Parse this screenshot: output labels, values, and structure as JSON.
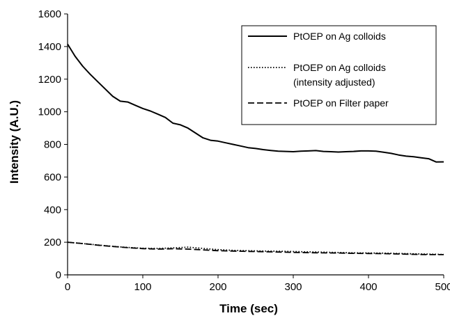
{
  "chart_data": {
    "type": "line",
    "xlabel": "Time (sec)",
    "ylabel": "Intensity (A.U.)",
    "xlim": [
      0,
      500
    ],
    "ylim": [
      0,
      1600
    ],
    "xticks": [
      0,
      100,
      200,
      300,
      400,
      500
    ],
    "xtick_labels": [
      "0",
      "100",
      "200",
      "300",
      "400",
      "500"
    ],
    "yticks": [
      0,
      200,
      400,
      600,
      800,
      1000,
      1200,
      1400,
      1600
    ],
    "ytick_labels": [
      "0",
      "200",
      "400",
      "600",
      "800",
      "1000",
      "1200",
      "1400",
      "1600"
    ],
    "grid": false,
    "legend_position": "top-right",
    "series": [
      {
        "name": "PtOEP on Ag colloids",
        "style": "solid",
        "color": "#000000",
        "x": [
          0,
          10,
          20,
          30,
          40,
          50,
          60,
          70,
          80,
          90,
          100,
          110,
          120,
          130,
          140,
          150,
          160,
          170,
          180,
          190,
          200,
          210,
          220,
          230,
          240,
          250,
          260,
          270,
          280,
          290,
          300,
          310,
          320,
          330,
          340,
          350,
          360,
          370,
          380,
          390,
          400,
          410,
          420,
          430,
          440,
          450,
          460,
          470,
          480,
          490,
          500
        ],
        "y": [
          1415,
          1340,
          1280,
          1230,
          1185,
          1140,
          1095,
          1065,
          1060,
          1040,
          1020,
          1005,
          985,
          965,
          930,
          920,
          900,
          870,
          840,
          825,
          820,
          810,
          800,
          790,
          780,
          775,
          768,
          763,
          758,
          757,
          755,
          758,
          760,
          762,
          757,
          755,
          753,
          755,
          757,
          760,
          760,
          758,
          752,
          745,
          735,
          728,
          724,
          718,
          712,
          692,
          693
        ]
      },
      {
        "name": "PtOEP on Ag colloids\n(intensity adjusted)",
        "style": "dotted",
        "color": "#000000",
        "x": [
          0,
          20,
          40,
          60,
          80,
          100,
          120,
          140,
          160,
          180,
          200,
          220,
          240,
          260,
          280,
          300,
          320,
          340,
          360,
          380,
          400,
          420,
          440,
          460,
          480,
          500
        ],
        "y": [
          200,
          192,
          183,
          175,
          168,
          163,
          162,
          165,
          170,
          162,
          155,
          150,
          148,
          146,
          145,
          143,
          141,
          139,
          137,
          135,
          134,
          133,
          131,
          129,
          127,
          125
        ]
      },
      {
        "name": "PtOEP on Filter paper",
        "style": "dashed",
        "color": "#000000",
        "x": [
          0,
          20,
          40,
          60,
          80,
          100,
          120,
          140,
          160,
          180,
          200,
          220,
          240,
          260,
          280,
          300,
          320,
          340,
          360,
          380,
          400,
          420,
          440,
          460,
          480,
          500
        ],
        "y": [
          200,
          192,
          182,
          174,
          167,
          161,
          158,
          160,
          158,
          153,
          148,
          146,
          144,
          142,
          140,
          138,
          136,
          135,
          134,
          132,
          131,
          130,
          128,
          126,
          124,
          124
        ]
      }
    ]
  }
}
